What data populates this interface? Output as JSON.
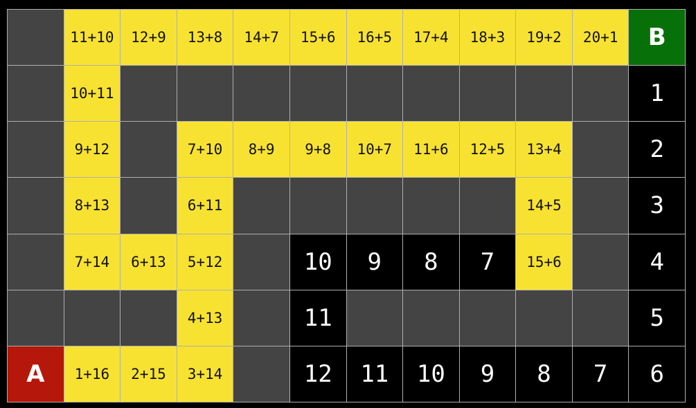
{
  "colors": {
    "wall": "#444444",
    "path": "#f8e231",
    "distance": "#000000",
    "start": "#b5170a",
    "goal": "#087008"
  },
  "grid": [
    [
      [
        "g",
        ""
      ],
      [
        "y",
        "11+10"
      ],
      [
        "y",
        "12+9"
      ],
      [
        "y",
        "13+8"
      ],
      [
        "y",
        "14+7"
      ],
      [
        "y",
        "15+6"
      ],
      [
        "y",
        "16+5"
      ],
      [
        "y",
        "17+4"
      ],
      [
        "y",
        "18+3"
      ],
      [
        "y",
        "19+2"
      ],
      [
        "y",
        "20+1"
      ],
      [
        "B",
        "B"
      ]
    ],
    [
      [
        "g",
        ""
      ],
      [
        "y",
        "10+11"
      ],
      [
        "g",
        ""
      ],
      [
        "g",
        ""
      ],
      [
        "g",
        ""
      ],
      [
        "g",
        ""
      ],
      [
        "g",
        ""
      ],
      [
        "g",
        ""
      ],
      [
        "g",
        ""
      ],
      [
        "g",
        ""
      ],
      [
        "g",
        ""
      ],
      [
        "k",
        "1"
      ]
    ],
    [
      [
        "g",
        ""
      ],
      [
        "y",
        "9+12"
      ],
      [
        "g",
        ""
      ],
      [
        "y",
        "7+10"
      ],
      [
        "y",
        "8+9"
      ],
      [
        "y",
        "9+8"
      ],
      [
        "y",
        "10+7"
      ],
      [
        "y",
        "11+6"
      ],
      [
        "y",
        "12+5"
      ],
      [
        "y",
        "13+4"
      ],
      [
        "g",
        ""
      ],
      [
        "k",
        "2"
      ]
    ],
    [
      [
        "g",
        ""
      ],
      [
        "y",
        "8+13"
      ],
      [
        "g",
        ""
      ],
      [
        "y",
        "6+11"
      ],
      [
        "g",
        ""
      ],
      [
        "g",
        ""
      ],
      [
        "g",
        ""
      ],
      [
        "g",
        ""
      ],
      [
        "g",
        ""
      ],
      [
        "y",
        "14+5"
      ],
      [
        "g",
        ""
      ],
      [
        "k",
        "3"
      ]
    ],
    [
      [
        "g",
        ""
      ],
      [
        "y",
        "7+14"
      ],
      [
        "y",
        "6+13"
      ],
      [
        "y",
        "5+12"
      ],
      [
        "g",
        ""
      ],
      [
        "k",
        "10"
      ],
      [
        "k",
        "9"
      ],
      [
        "k",
        "8"
      ],
      [
        "k",
        "7"
      ],
      [
        "y",
        "15+6"
      ],
      [
        "g",
        ""
      ],
      [
        "k",
        "4"
      ]
    ],
    [
      [
        "g",
        ""
      ],
      [
        "g",
        ""
      ],
      [
        "g",
        ""
      ],
      [
        "y",
        "4+13"
      ],
      [
        "g",
        ""
      ],
      [
        "k",
        "11"
      ],
      [
        "g",
        ""
      ],
      [
        "g",
        ""
      ],
      [
        "g",
        ""
      ],
      [
        "g",
        ""
      ],
      [
        "g",
        ""
      ],
      [
        "k",
        "5"
      ]
    ],
    [
      [
        "A",
        "A"
      ],
      [
        "y",
        "1+16"
      ],
      [
        "y",
        "2+15"
      ],
      [
        "y",
        "3+14"
      ],
      [
        "g",
        ""
      ],
      [
        "k",
        "12"
      ],
      [
        "k",
        "11"
      ],
      [
        "k",
        "10"
      ],
      [
        "k",
        "9"
      ],
      [
        "k",
        "8"
      ],
      [
        "k",
        "7"
      ],
      [
        "k",
        "6"
      ]
    ]
  ]
}
